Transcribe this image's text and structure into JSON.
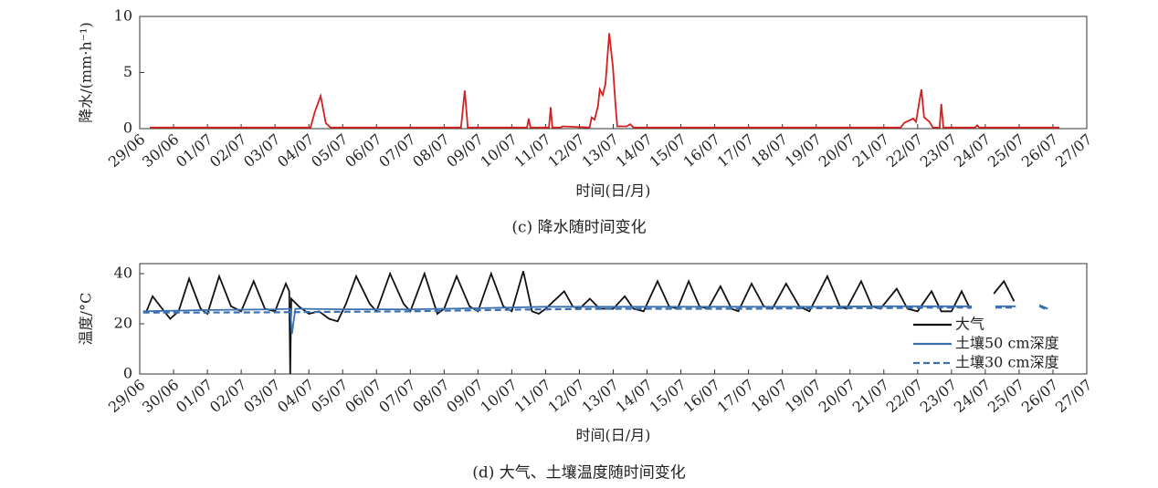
{
  "chart_data": [
    {
      "type": "line",
      "caption": "(c) 降水随时间变化",
      "xlabel": "时间(日/月)",
      "ylabel": "降水/(mm·h⁻¹)",
      "xlim": [
        0,
        28
      ],
      "ylim": [
        0,
        10
      ],
      "yticks": [
        0,
        5,
        10
      ],
      "xticks": [
        {
          "value": 0,
          "label": "29/06"
        },
        {
          "value": 1,
          "label": "30/06"
        },
        {
          "value": 2,
          "label": "01/07"
        },
        {
          "value": 3,
          "label": "02/07"
        },
        {
          "value": 4,
          "label": "03/07"
        },
        {
          "value": 5,
          "label": "04/07"
        },
        {
          "value": 6,
          "label": "05/07"
        },
        {
          "value": 7,
          "label": "06/07"
        },
        {
          "value": 8,
          "label": "07/07"
        },
        {
          "value": 9,
          "label": "08/07"
        },
        {
          "value": 10,
          "label": "09/07"
        },
        {
          "value": 11,
          "label": "10/07"
        },
        {
          "value": 12,
          "label": "11/07"
        },
        {
          "value": 13,
          "label": "12/07"
        },
        {
          "value": 14,
          "label": "13/07"
        },
        {
          "value": 15,
          "label": "14/07"
        },
        {
          "value": 16,
          "label": "15/07"
        },
        {
          "value": 17,
          "label": "16/07"
        },
        {
          "value": 18,
          "label": "17/07"
        },
        {
          "value": 19,
          "label": "18/07"
        },
        {
          "value": 20,
          "label": "19/07"
        },
        {
          "value": 21,
          "label": "20/07"
        },
        {
          "value": 22,
          "label": "21/07"
        },
        {
          "value": 23,
          "label": "22/07"
        },
        {
          "value": 24,
          "label": "23/07"
        },
        {
          "value": 25,
          "label": "24/07"
        },
        {
          "value": 26,
          "label": "25/07"
        },
        {
          "value": 27,
          "label": "26/07"
        },
        {
          "value": 28,
          "label": "27/07"
        }
      ],
      "series": [
        {
          "color": "#d42020",
          "x": [
            0.3,
            5.05,
            5.18,
            5.35,
            5.5,
            5.64,
            9.5,
            9.61,
            9.7,
            11.45,
            11.5,
            11.55,
            12.1,
            12.15,
            12.2,
            12.45,
            12.5,
            13.3,
            13.36,
            13.45,
            13.55,
            13.6,
            13.69,
            13.77,
            13.88,
            13.99,
            14.07,
            14.12,
            14.4,
            14.5,
            14.6,
            22.5,
            22.6,
            22.87,
            22.95,
            23.11,
            23.19,
            23.35,
            23.45,
            23.65,
            23.7,
            23.76,
            24.7,
            24.76,
            24.82,
            27.19
          ],
          "values": [
            0.1,
            0.1,
            1.5,
            2.9,
            0.5,
            0.1,
            0.1,
            3.4,
            0.1,
            0.1,
            0.9,
            0.1,
            0.1,
            1.9,
            0.1,
            0.1,
            0.2,
            0.1,
            1.0,
            0.8,
            2.0,
            3.5,
            3.0,
            4.0,
            8.5,
            5.5,
            2.0,
            0.2,
            0.2,
            0.4,
            0.1,
            0.1,
            0.5,
            0.9,
            0.6,
            3.5,
            1.0,
            0.6,
            0.1,
            0.1,
            2.2,
            0.1,
            0.1,
            0.3,
            0.1,
            0.1
          ]
        }
      ]
    },
    {
      "type": "line",
      "caption": "(d) 大气、土壤温度随时间变化",
      "xlabel": "时间(日/月)",
      "ylabel": "温度/°C",
      "xlim": [
        0,
        28
      ],
      "ylim": [
        0,
        44
      ],
      "yticks": [
        0,
        20,
        40
      ],
      "legend": "lower right",
      "xticks": [
        {
          "value": 0,
          "label": "29/06"
        },
        {
          "value": 1,
          "label": "30/06"
        },
        {
          "value": 2,
          "label": "01/07"
        },
        {
          "value": 3,
          "label": "02/07"
        },
        {
          "value": 4,
          "label": "03/07"
        },
        {
          "value": 5,
          "label": "04/07"
        },
        {
          "value": 6,
          "label": "05/07"
        },
        {
          "value": 7,
          "label": "06/07"
        },
        {
          "value": 8,
          "label": "07/07"
        },
        {
          "value": 9,
          "label": "08/07"
        },
        {
          "value": 10,
          "label": "09/07"
        },
        {
          "value": 11,
          "label": "10/07"
        },
        {
          "value": 12,
          "label": "11/07"
        },
        {
          "value": 13,
          "label": "12/07"
        },
        {
          "value": 14,
          "label": "13/07"
        },
        {
          "value": 15,
          "label": "14/07"
        },
        {
          "value": 16,
          "label": "15/07"
        },
        {
          "value": 17,
          "label": "16/07"
        },
        {
          "value": 18,
          "label": "17/07"
        },
        {
          "value": 19,
          "label": "18/07"
        },
        {
          "value": 20,
          "label": "19/07"
        },
        {
          "value": 21,
          "label": "20/07"
        },
        {
          "value": 22,
          "label": "21/07"
        },
        {
          "value": 23,
          "label": "22/07"
        },
        {
          "value": 24,
          "label": "23/07"
        },
        {
          "value": 25,
          "label": "24/07"
        },
        {
          "value": 26,
          "label": "25/07"
        },
        {
          "value": 27,
          "label": "26/07"
        },
        {
          "value": 28,
          "label": "27/07"
        }
      ],
      "series": [
        {
          "name": "大气",
          "color": "#111111",
          "linestyle": "solid",
          "x": [
            0.2,
            0.38,
            0.55,
            0.9,
            1.15,
            1.46,
            1.8,
            2.0,
            2.35,
            2.7,
            3.0,
            3.37,
            3.7,
            4.0,
            4.32,
            4.42,
            4.45,
            4.48,
            4.7,
            5.0,
            5.3,
            5.6,
            5.85,
            6.1,
            6.4,
            6.8,
            7.0,
            7.4,
            7.8,
            8.0,
            8.42,
            8.8,
            9.0,
            9.37,
            9.75,
            10.0,
            10.39,
            10.75,
            11.0,
            11.34,
            11.6,
            11.8,
            12.0,
            12.55,
            12.8,
            13.0,
            13.31,
            13.6,
            14.0,
            14.34,
            14.6,
            14.9,
            15.31,
            15.65,
            15.9,
            16.23,
            16.55,
            16.8,
            17.17,
            17.5,
            17.7,
            18.09,
            18.45,
            18.7,
            19.11,
            19.5,
            19.8,
            20.33,
            20.7,
            20.9,
            21.33,
            21.65,
            21.9,
            22.38,
            22.7,
            23.0,
            23.41,
            23.7,
            24.0,
            24.3,
            24.55,
            24.7,
            25.25,
            25.55,
            25.85
          ],
          "values": [
            25,
            31,
            28,
            22,
            25,
            38,
            26,
            24,
            39,
            27,
            25,
            37,
            26,
            25,
            36,
            33,
            0,
            30,
            27,
            24,
            25,
            22,
            21,
            28,
            39,
            28,
            25,
            40,
            28,
            25,
            40,
            24,
            26,
            39,
            27,
            25,
            40,
            27,
            25,
            41,
            25,
            24,
            26,
            33,
            27,
            26,
            30,
            26,
            26,
            31,
            26,
            25,
            37,
            27,
            26,
            37,
            27,
            26,
            35,
            26,
            25,
            36,
            27,
            26,
            36,
            27,
            25,
            39,
            27,
            26,
            37,
            27,
            26,
            34,
            26,
            25,
            33,
            25,
            25,
            33,
            26,
            null,
            32,
            37,
            29
          ]
        },
        {
          "name": "土壤50 cm深度",
          "color": "#3a6fb0",
          "linestyle": "solid",
          "x": [
            0.1,
            2.0,
            4.0,
            4.45,
            4.5,
            4.6,
            6.0,
            8.0,
            10.0,
            12.0,
            14.0,
            16.0,
            18.0,
            20.0,
            22.0,
            24.0,
            24.6,
            24.7,
            25.3,
            25.9,
            26.0,
            26.6,
            26.85
          ],
          "values": [
            25,
            25.5,
            25.8,
            26,
            16,
            26,
            25.8,
            25.8,
            26.2,
            26.8,
            26.8,
            26.8,
            26.8,
            26.8,
            27,
            27,
            27,
            null,
            27,
            27,
            null,
            27.5,
            26
          ]
        },
        {
          "name": "土壤30 cm深度",
          "color": "#3a6fb0",
          "linestyle": "dashed",
          "x": [
            0.1,
            2.0,
            4.0,
            6.0,
            8.0,
            10.0,
            12.0,
            14.0,
            16.0,
            18.0,
            20.0,
            22.0,
            24.0,
            24.6,
            24.7,
            25.3,
            25.9,
            26.0,
            26.6,
            26.85
          ],
          "values": [
            24.5,
            24.5,
            24.6,
            24.8,
            25,
            25.4,
            25.8,
            26,
            26,
            26,
            26.2,
            26.3,
            26.5,
            26.5,
            null,
            26.5,
            26.5,
            null,
            27,
            25.5
          ]
        }
      ]
    }
  ]
}
